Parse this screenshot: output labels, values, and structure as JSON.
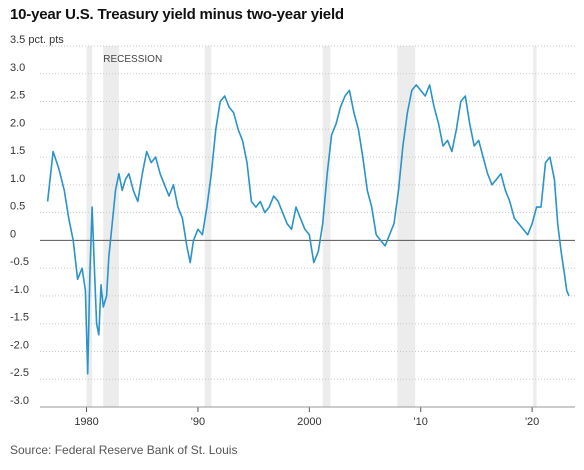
{
  "title": "10-year U.S. Treasury yield minus two-year yield",
  "source": "Source: Federal Reserve Bank of St. Louis",
  "colors": {
    "line": "#2a93c9",
    "recession": "#ececec",
    "zero": "#555555"
  },
  "chart_data": {
    "type": "line",
    "title": "10-year U.S. Treasury yield minus two-year yield",
    "ylabel": "3.5 pct. pts",
    "ylim": [
      -3.0,
      3.5
    ],
    "xlim": [
      1976,
      2023.4
    ],
    "y_ticks": [
      3.5,
      3.0,
      2.5,
      2.0,
      1.5,
      1.0,
      0.5,
      0,
      -0.5,
      -1.0,
      -1.5,
      -2.0,
      -2.5,
      -3.0
    ],
    "y_tick_labels": [
      "3.5 pct. pts",
      "3.0",
      "2.5",
      "2.0",
      "1.5",
      "1.0",
      "0.5",
      "0",
      "-0.5",
      "-1.0",
      "-1.5",
      "-2.0",
      "-2.5",
      "-3.0"
    ],
    "x_ticks": [
      1980,
      1990,
      2000,
      2010,
      2020
    ],
    "x_tick_labels": [
      "1980",
      "'90",
      "2000",
      "'10",
      "'20"
    ],
    "grid": "horizontal dotted",
    "recession_label": "RECESSION",
    "recessions": [
      [
        1980.0,
        1980.5
      ],
      [
        1981.5,
        1982.9
      ],
      [
        1990.6,
        1991.2
      ],
      [
        2001.2,
        2001.9
      ],
      [
        2007.9,
        2009.5
      ],
      [
        2020.1,
        2020.4
      ]
    ],
    "series": [
      {
        "x": [
          1976.5,
          1977.0,
          1977.5,
          1978.0,
          1978.4,
          1978.8,
          1979.2,
          1979.6,
          1979.9,
          1980.1,
          1980.3,
          1980.5,
          1980.7,
          1980.9,
          1981.1,
          1981.3,
          1981.5,
          1981.8,
          1982.0,
          1982.3,
          1982.6,
          1982.9,
          1983.2,
          1983.5,
          1983.8,
          1984.2,
          1984.6,
          1985.0,
          1985.4,
          1985.8,
          1986.2,
          1986.6,
          1987.0,
          1987.4,
          1987.8,
          1988.2,
          1988.6,
          1989.0,
          1989.3,
          1989.6,
          1990.0,
          1990.4,
          1990.8,
          1991.2,
          1991.6,
          1992.0,
          1992.4,
          1992.8,
          1993.2,
          1993.6,
          1994.0,
          1994.4,
          1994.8,
          1995.2,
          1995.6,
          1996.0,
          1996.4,
          1996.8,
          1997.2,
          1997.6,
          1998.0,
          1998.4,
          1998.8,
          1999.2,
          1999.6,
          2000.0,
          2000.4,
          2000.8,
          2001.2,
          2001.6,
          2002.0,
          2002.4,
          2002.8,
          2003.2,
          2003.6,
          2004.0,
          2004.4,
          2004.8,
          2005.2,
          2005.6,
          2006.0,
          2006.4,
          2006.8,
          2007.2,
          2007.6,
          2008.0,
          2008.4,
          2008.8,
          2009.2,
          2009.6,
          2010.0,
          2010.4,
          2010.8,
          2011.2,
          2011.6,
          2012.0,
          2012.4,
          2012.8,
          2013.2,
          2013.6,
          2014.0,
          2014.4,
          2014.8,
          2015.2,
          2015.6,
          2016.0,
          2016.4,
          2016.8,
          2017.2,
          2017.6,
          2018.0,
          2018.4,
          2018.8,
          2019.2,
          2019.6,
          2020.0,
          2020.4,
          2020.8,
          2021.2,
          2021.6,
          2022.0,
          2022.3,
          2022.6,
          2022.9,
          2023.1,
          2023.3
        ],
        "y": [
          0.7,
          1.6,
          1.3,
          0.9,
          0.4,
          0.0,
          -0.7,
          -0.5,
          -0.9,
          -2.4,
          -0.6,
          0.6,
          -0.5,
          -1.5,
          -1.7,
          -0.8,
          -1.2,
          -1.0,
          -0.3,
          0.3,
          0.9,
          1.2,
          0.9,
          1.1,
          1.2,
          0.9,
          0.7,
          1.2,
          1.6,
          1.4,
          1.5,
          1.2,
          1.0,
          0.8,
          1.0,
          0.6,
          0.4,
          -0.1,
          -0.4,
          0.0,
          0.2,
          0.1,
          0.6,
          1.2,
          2.0,
          2.5,
          2.6,
          2.4,
          2.3,
          2.0,
          1.8,
          1.4,
          0.7,
          0.6,
          0.7,
          0.5,
          0.6,
          0.8,
          0.7,
          0.5,
          0.3,
          0.2,
          0.6,
          0.4,
          0.2,
          0.1,
          -0.4,
          -0.2,
          0.3,
          1.2,
          1.9,
          2.1,
          2.4,
          2.6,
          2.7,
          2.3,
          2.0,
          1.5,
          0.9,
          0.6,
          0.1,
          0.0,
          -0.1,
          0.1,
          0.3,
          0.9,
          1.7,
          2.3,
          2.7,
          2.8,
          2.7,
          2.6,
          2.8,
          2.4,
          2.1,
          1.7,
          1.8,
          1.6,
          2.0,
          2.5,
          2.6,
          2.1,
          1.7,
          1.8,
          1.5,
          1.2,
          1.0,
          1.1,
          1.2,
          0.9,
          0.7,
          0.4,
          0.3,
          0.2,
          0.1,
          0.3,
          0.6,
          0.6,
          1.4,
          1.5,
          1.1,
          0.3,
          -0.2,
          -0.6,
          -0.9,
          -1.0
        ]
      }
    ]
  }
}
